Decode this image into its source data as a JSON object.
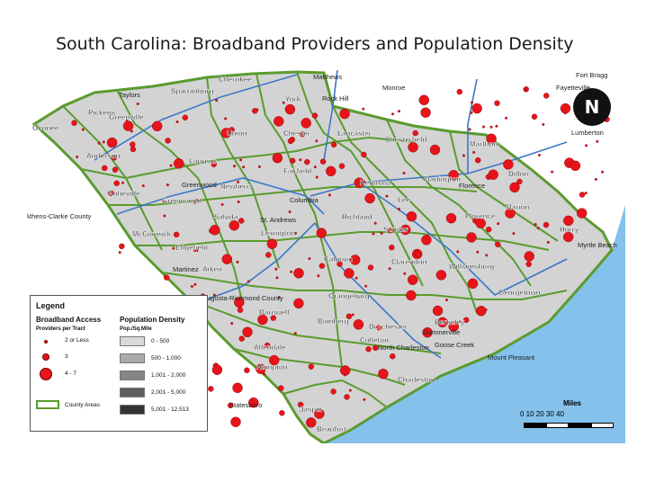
{
  "title": "South Carolina: Broadband Providers and Population Density",
  "colors": {
    "ocean": "#84c1eb",
    "land_outside": "#ffffff",
    "county_fill": "#d3d3d3",
    "county_border": "#5a9b2e",
    "dot": "#e8141b",
    "road": "#3c78c8"
  },
  "place_labels": [
    {
      "name": "Matthews"
    },
    {
      "name": "Fort Bragg"
    },
    {
      "name": "Monroe"
    },
    {
      "name": "Fayetteville"
    },
    {
      "name": "Lumberton"
    },
    {
      "name": "Athens-Clarke County"
    },
    {
      "name": "Statesboro"
    },
    {
      "name": "Martinez"
    },
    {
      "name": "Augusta-Richmond County"
    },
    {
      "name": "Rock Hill"
    },
    {
      "name": "Taylors"
    },
    {
      "name": "Greenwood"
    },
    {
      "name": "Columbia"
    },
    {
      "name": "St. Andrews"
    },
    {
      "name": "North Charleston"
    },
    {
      "name": "Mount Pleasant"
    },
    {
      "name": "Goose Creek"
    },
    {
      "name": "Summerville"
    },
    {
      "name": "Myrtle Beach"
    },
    {
      "name": "Florence"
    }
  ],
  "county_labels": [
    {
      "name": "Cherokee"
    },
    {
      "name": "Spartanburg"
    },
    {
      "name": "York"
    },
    {
      "name": "Pickens"
    },
    {
      "name": "Greenville"
    },
    {
      "name": "Oconee"
    },
    {
      "name": "Union"
    },
    {
      "name": "Chester"
    },
    {
      "name": "Lancaster"
    },
    {
      "name": "Chesterfield"
    },
    {
      "name": "Marlboro"
    },
    {
      "name": "Anderson"
    },
    {
      "name": "Laurens"
    },
    {
      "name": "Dillon"
    },
    {
      "name": "Fairfield"
    },
    {
      "name": "Darlington"
    },
    {
      "name": "Kershaw"
    },
    {
      "name": "Abbeville"
    },
    {
      "name": "Newberry"
    },
    {
      "name": "Marion"
    },
    {
      "name": "Lee"
    },
    {
      "name": "Greenwood"
    },
    {
      "name": "Florence"
    },
    {
      "name": "Richland"
    },
    {
      "name": "Saluda"
    },
    {
      "name": "McCormick"
    },
    {
      "name": "Lexington"
    },
    {
      "name": "Sumter"
    },
    {
      "name": "Horry"
    },
    {
      "name": "Edgefield"
    },
    {
      "name": "Calhoun"
    },
    {
      "name": "Clarendon"
    },
    {
      "name": "Williamsburg"
    },
    {
      "name": "Aiken"
    },
    {
      "name": "Orangeburg"
    },
    {
      "name": "Georgetown"
    },
    {
      "name": "Barnwell"
    },
    {
      "name": "Bamberg"
    },
    {
      "name": "Berkeley"
    },
    {
      "name": "Dorchester"
    },
    {
      "name": "Allendale"
    },
    {
      "name": "Colleton"
    },
    {
      "name": "Charleston"
    },
    {
      "name": "Hampton"
    },
    {
      "name": "Jasper"
    },
    {
      "name": "Beaufort"
    }
  ],
  "legend": {
    "title": "Legend",
    "broadband_header": "Broadband Access",
    "broadband_sub": "Providers per Tract",
    "density_header": "Population Density",
    "density_sub": "Pop./Sq.Mile",
    "provider_classes": [
      "2 or Less",
      "3",
      "4 - 7"
    ],
    "density_classes": [
      {
        "label": "0 - 500",
        "color": "#d9d9d9"
      },
      {
        "label": "500 - 1,000",
        "color": "#aaaaaa"
      },
      {
        "label": "1,001 - 2,000",
        "color": "#858585"
      },
      {
        "label": "2,001 - 5,000",
        "color": "#5e5e5e"
      },
      {
        "label": "5,001 - 12,513",
        "color": "#333333"
      }
    ],
    "county_areas": "County Areas"
  },
  "north_arrow": "N",
  "scale": {
    "title": "Miles",
    "ticks": "0   10   20   30   40"
  }
}
